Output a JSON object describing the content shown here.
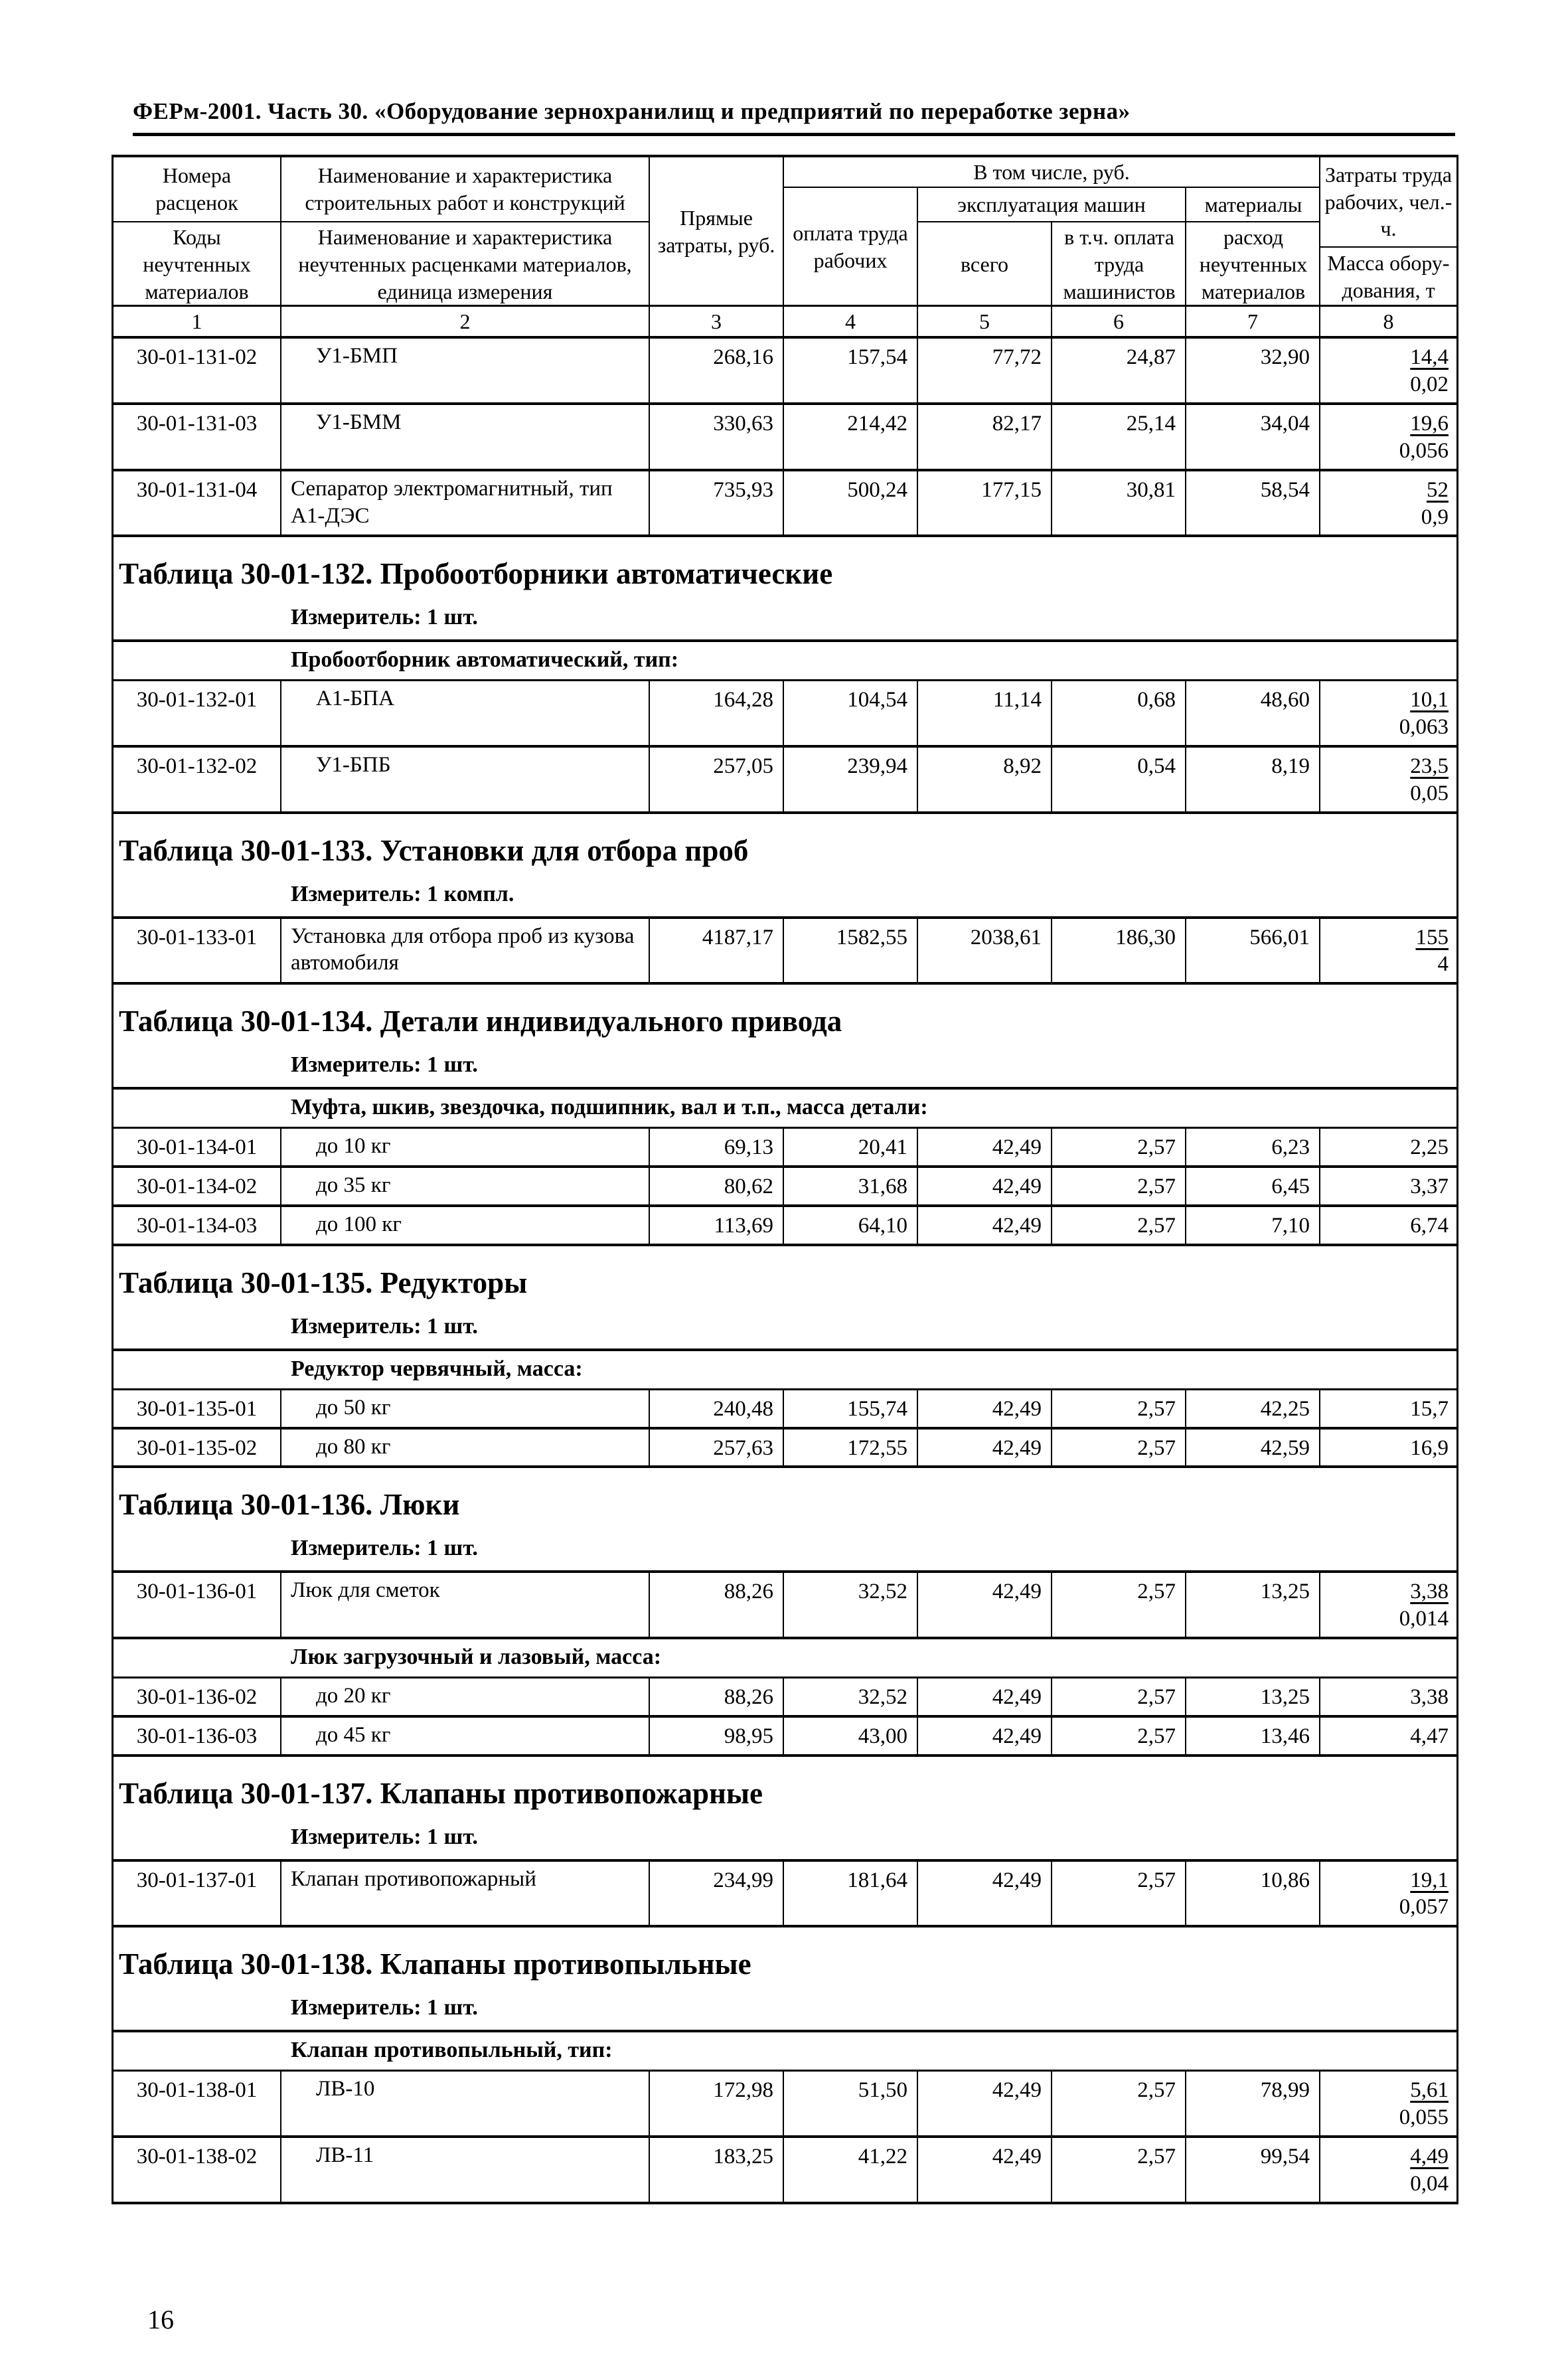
{
  "page": {
    "header_title": "ФЕРм-2001. Часть 30. «Оборудование зернохранилищ и предприятий по переработке зерна»",
    "page_number": "16"
  },
  "thead": {
    "col1_top": "Номера расценок",
    "col1_bottom": "Коды неучтенных материалов",
    "col2_top": "Наименование и характеристика строительных работ и конструкций",
    "col2_bottom": "Наименование и характеристика неучтенных расценками материалов, единица измерения",
    "col3": "Прямые затраты, руб.",
    "incl": "В том числе, руб.",
    "col4": "оплата труда рабочих",
    "mach_group": "эксплуатация машин",
    "col5": "всего",
    "col6": "в т.ч. оплата труда машинистов",
    "mat_group": "материалы",
    "col7": "расход неучтенных материалов",
    "col8_top": "Затраты труда рабочих, чел.-ч.",
    "col8_bottom": "Масса обору-дования, т",
    "nums": [
      "1",
      "2",
      "3",
      "4",
      "5",
      "6",
      "7",
      "8"
    ]
  },
  "t131": {
    "rows": [
      {
        "code": "30-01-131-02",
        "name": "У1-БМП",
        "direct": "268,16",
        "labor": "157,54",
        "mach": "77,72",
        "oper": "24,87",
        "mater": "32,90",
        "hours": "14,4",
        "mass": "0,02"
      },
      {
        "code": "30-01-131-03",
        "name": "У1-БММ",
        "direct": "330,63",
        "labor": "214,42",
        "mach": "82,17",
        "oper": "25,14",
        "mater": "34,04",
        "hours": "19,6",
        "mass": "0,056"
      },
      {
        "code": "30-01-131-04",
        "name": "Сепаратор электромагнитный, тип А1-ДЭС",
        "direct": "735,93",
        "labor": "500,24",
        "mach": "177,15",
        "oper": "30,81",
        "mater": "58,54",
        "hours": "52",
        "mass": "0,9"
      }
    ]
  },
  "t132": {
    "title": "Таблица 30-01-132. Пробоотборники автоматические",
    "meter": "Измеритель: 1 шт.",
    "group": "Пробоотборник автоматический, тип:",
    "rows": [
      {
        "code": "30-01-132-01",
        "name": "А1-БПА",
        "direct": "164,28",
        "labor": "104,54",
        "mach": "11,14",
        "oper": "0,68",
        "mater": "48,60",
        "hours": "10,1",
        "mass": "0,063"
      },
      {
        "code": "30-01-132-02",
        "name": "У1-БПБ",
        "direct": "257,05",
        "labor": "239,94",
        "mach": "8,92",
        "oper": "0,54",
        "mater": "8,19",
        "hours": "23,5",
        "mass": "0,05"
      }
    ]
  },
  "t133": {
    "title": "Таблица 30-01-133. Установки для отбора проб",
    "meter": "Измеритель: 1 компл.",
    "rows": [
      {
        "code": "30-01-133-01",
        "name": "Установка для отбора проб из кузова автомобиля",
        "direct": "4187,17",
        "labor": "1582,55",
        "mach": "2038,61",
        "oper": "186,30",
        "mater": "566,01",
        "hours": "155",
        "mass": "4"
      }
    ]
  },
  "t134": {
    "title": "Таблица 30-01-134. Детали индивидуального привода",
    "meter": "Измеритель: 1 шт.",
    "group": "Муфта, шкив, звездочка, подшипник, вал и т.п., масса детали:",
    "rows": [
      {
        "code": "30-01-134-01",
        "name": "до 10 кг",
        "direct": "69,13",
        "labor": "20,41",
        "mach": "42,49",
        "oper": "2,57",
        "mater": "6,23",
        "hours": "2,25"
      },
      {
        "code": "30-01-134-02",
        "name": "до 35 кг",
        "direct": "80,62",
        "labor": "31,68",
        "mach": "42,49",
        "oper": "2,57",
        "mater": "6,45",
        "hours": "3,37"
      },
      {
        "code": "30-01-134-03",
        "name": "до 100 кг",
        "direct": "113,69",
        "labor": "64,10",
        "mach": "42,49",
        "oper": "2,57",
        "mater": "7,10",
        "hours": "6,74"
      }
    ]
  },
  "t135": {
    "title": "Таблица 30-01-135. Редукторы",
    "meter": "Измеритель: 1 шт.",
    "group": "Редуктор червячный, масса:",
    "rows": [
      {
        "code": "30-01-135-01",
        "name": "до 50 кг",
        "direct": "240,48",
        "labor": "155,74",
        "mach": "42,49",
        "oper": "2,57",
        "mater": "42,25",
        "hours": "15,7"
      },
      {
        "code": "30-01-135-02",
        "name": "до 80 кг",
        "direct": "257,63",
        "labor": "172,55",
        "mach": "42,49",
        "oper": "2,57",
        "mater": "42,59",
        "hours": "16,9"
      }
    ]
  },
  "t136": {
    "title": "Таблица 30-01-136. Люки",
    "meter": "Измеритель: 1 шт.",
    "rows": [
      {
        "code": "30-01-136-01",
        "name": "Люк для сметок",
        "direct": "88,26",
        "labor": "32,52",
        "mach": "42,49",
        "oper": "2,57",
        "mater": "13,25",
        "hours": "3,38",
        "mass": "0,014"
      }
    ],
    "group": "Люк загрузочный и лазовый, масса:",
    "rows2": [
      {
        "code": "30-01-136-02",
        "name": "до 20 кг",
        "direct": "88,26",
        "labor": "32,52",
        "mach": "42,49",
        "oper": "2,57",
        "mater": "13,25",
        "hours": "3,38"
      },
      {
        "code": "30-01-136-03",
        "name": "до 45 кг",
        "direct": "98,95",
        "labor": "43,00",
        "mach": "42,49",
        "oper": "2,57",
        "mater": "13,46",
        "hours": "4,47"
      }
    ]
  },
  "t137": {
    "title": "Таблица 30-01-137. Клапаны противопожарные",
    "meter": "Измеритель: 1 шт.",
    "rows": [
      {
        "code": "30-01-137-01",
        "name": "Клапан противопожарный",
        "direct": "234,99",
        "labor": "181,64",
        "mach": "42,49",
        "oper": "2,57",
        "mater": "10,86",
        "hours": "19,1",
        "mass": "0,057"
      }
    ]
  },
  "t138": {
    "title": "Таблица 30-01-138. Клапаны противопыльные",
    "meter": "Измеритель: 1 шт.",
    "group": "Клапан противопыльный, тип:",
    "rows": [
      {
        "code": "30-01-138-01",
        "name": "ЛВ-10",
        "direct": "172,98",
        "labor": "51,50",
        "mach": "42,49",
        "oper": "2,57",
        "mater": "78,99",
        "hours": "5,61",
        "mass": "0,055"
      },
      {
        "code": "30-01-138-02",
        "name": "ЛВ-11",
        "direct": "183,25",
        "labor": "41,22",
        "mach": "42,49",
        "oper": "2,57",
        "mater": "99,54",
        "hours": "4,49",
        "mass": "0,04"
      }
    ]
  }
}
